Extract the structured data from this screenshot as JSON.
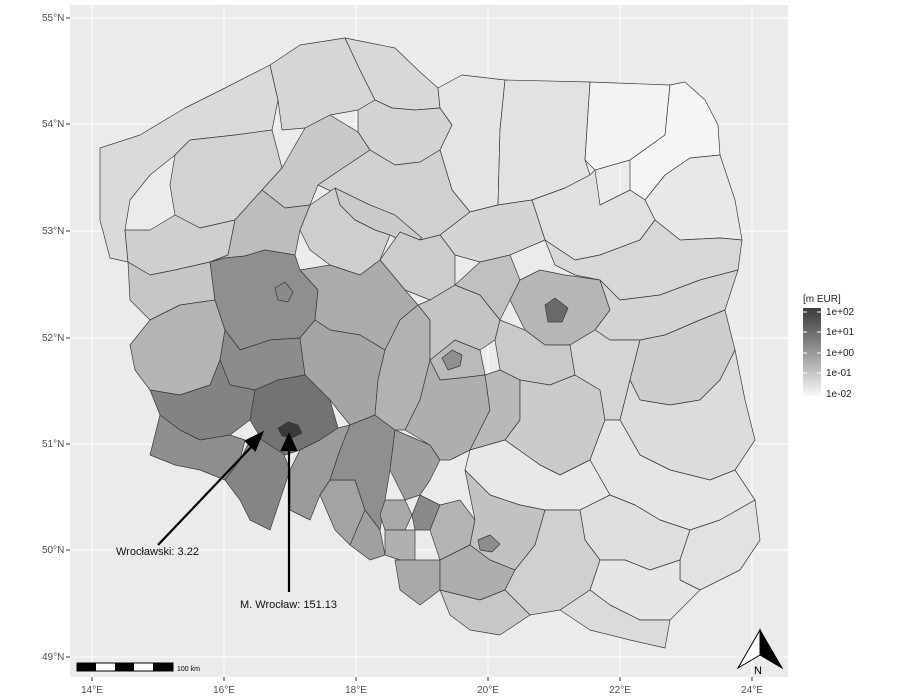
{
  "map": {
    "lat_ticks": [
      "55°N",
      "54°N",
      "53°N",
      "52°N",
      "51°N",
      "50°N",
      "49°N"
    ],
    "lon_ticks": [
      "14°E",
      "16°E",
      "18°E",
      "20°E",
      "22°E",
      "24°E"
    ],
    "legend": {
      "title": "[m EUR]",
      "labels": [
        "1e+02",
        "1e+01",
        "1e+00",
        "1e-01",
        "1e-02"
      ],
      "scale": "log10"
    },
    "annotations": [
      {
        "text": "Wrocławski: 3.22",
        "region": "Wrocławski",
        "value": 3.22
      },
      {
        "text": "M. Wrocław: 151.13",
        "region": "M. Wrocław",
        "value": 151.13
      }
    ],
    "scalebar_label": "100 km",
    "north_label": "N",
    "colors": {
      "panel": "#ebebeb",
      "grid": "#ffffff",
      "border": "#3a3a3a",
      "high": "#3a3a3a",
      "low": "#f7f7f7"
    }
  }
}
